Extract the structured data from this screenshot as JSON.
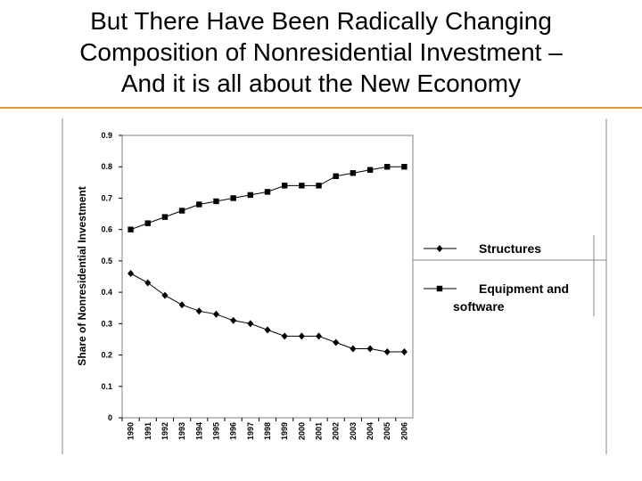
{
  "slide": {
    "title_lines": [
      "But There Have Been Radically Changing",
      "Composition of Nonresidential Investment –",
      "And it is all about the New Economy"
    ],
    "accent_color": "#e8962e"
  },
  "chart_data": {
    "type": "line",
    "title": "",
    "xlabel": "",
    "ylabel": "Share of Nonresidential Investment",
    "x": [
      "1990",
      "1991",
      "1992",
      "1993",
      "1994",
      "1995",
      "1996",
      "1997",
      "1998",
      "1999",
      "2000",
      "2001",
      "2002",
      "2003",
      "2004",
      "2005",
      "2006"
    ],
    "ylim": [
      0,
      0.9
    ],
    "yticks": [
      "0",
      "0.1",
      "0.2",
      "0.3",
      "0.4",
      "0.5",
      "0.6",
      "0.7",
      "0.8",
      "0.9"
    ],
    "grid": false,
    "legend_position": "right",
    "series": [
      {
        "name": "Structures",
        "marker": "diamond",
        "color": "#000000",
        "values": [
          0.46,
          0.43,
          0.39,
          0.36,
          0.34,
          0.33,
          0.31,
          0.3,
          0.28,
          0.26,
          0.26,
          0.26,
          0.24,
          0.22,
          0.22,
          0.21,
          0.21
        ]
      },
      {
        "name": "Equipment and software",
        "marker": "square",
        "color": "#000000",
        "values": [
          0.6,
          0.62,
          0.64,
          0.66,
          0.68,
          0.69,
          0.7,
          0.71,
          0.72,
          0.74,
          0.74,
          0.74,
          0.77,
          0.78,
          0.79,
          0.8,
          0.8
        ]
      }
    ],
    "legend": [
      {
        "lines": [
          "Structures"
        ]
      },
      {
        "lines": [
          "Equipment and",
          "software"
        ]
      }
    ]
  }
}
